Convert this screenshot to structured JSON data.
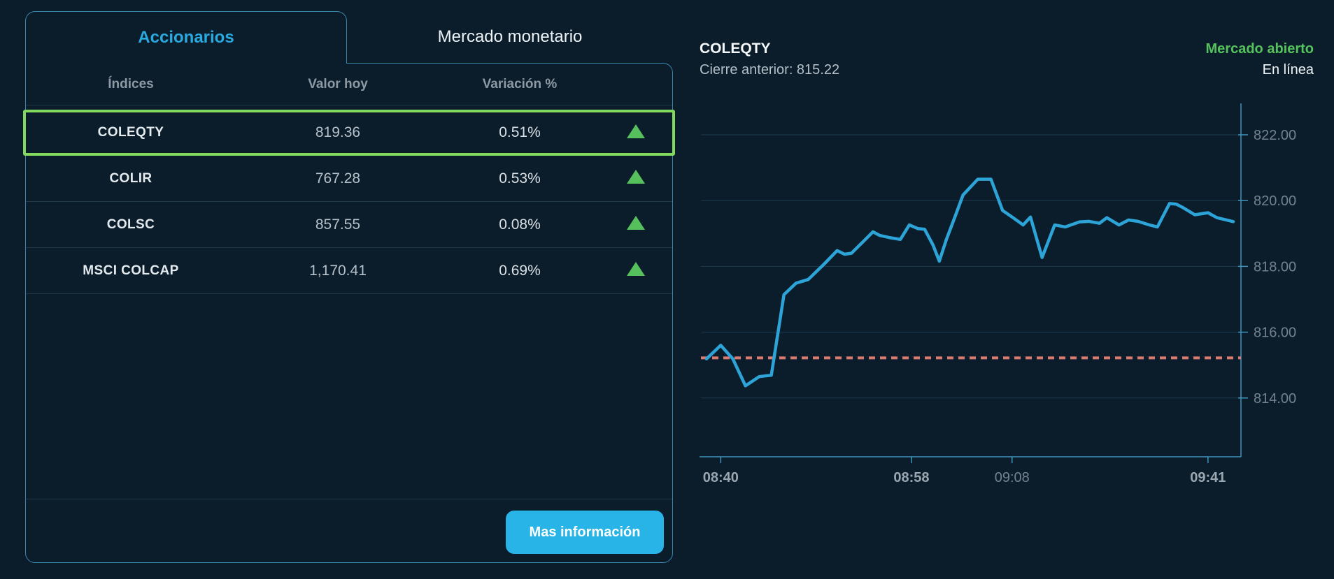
{
  "tabs": {
    "accionarios": "Accionarios",
    "mercado_monetario": "Mercado monetario"
  },
  "indices_table": {
    "headers": {
      "indices": "Índices",
      "valor_hoy": "Valor hoy",
      "variacion": "Variación %"
    },
    "rows": [
      {
        "name": "COLEQTY",
        "value": "819.36",
        "change": "0.51%",
        "direction": "up",
        "selected": true
      },
      {
        "name": "COLIR",
        "value": "767.28",
        "change": "0.53%",
        "direction": "up",
        "selected": false
      },
      {
        "name": "COLSC",
        "value": "857.55",
        "change": "0.08%",
        "direction": "up",
        "selected": false
      },
      {
        "name": "MSCI COLCAP",
        "value": "1,170.41",
        "change": "0.69%",
        "direction": "up",
        "selected": false
      }
    ],
    "more_info_button": "Mas información"
  },
  "quote_header": {
    "symbol": "COLEQTY",
    "previous_close_label": "Cierre anterior: 815.22",
    "market_status": "Mercado abierto",
    "connection_status": "En línea"
  },
  "colors": {
    "background": "#0b1d2b",
    "accent_cyan": "#29abe2",
    "button_cyan": "#29b4e8",
    "highlight_green": "#82d95e",
    "triangle_green": "#56c15c",
    "status_green": "#55c25d",
    "line_blue": "#2da4d8",
    "prev_close_dash": "#dd7a70"
  },
  "chart_data": {
    "type": "line",
    "title": "COLEQTY",
    "previous_close": 815.22,
    "last_value": 819.36,
    "grid": "horizontal",
    "legend": "none",
    "ylabel_side": "right",
    "ylim": [
      812.1,
      823.2
    ],
    "y_ticks": [
      822,
      820,
      818,
      816,
      814
    ],
    "y_tick_labels": [
      "822.00",
      "820.00",
      "818.00",
      "816.00",
      "814.00"
    ],
    "x_ticks": [
      {
        "label": "08:40",
        "pos": 0.027,
        "emphasis": "bold"
      },
      {
        "label": "08:58",
        "pos": 0.389,
        "emphasis": "bold"
      },
      {
        "label": "09:08",
        "pos": 0.58,
        "emphasis": "normal"
      },
      {
        "label": "09:41",
        "pos": 0.952,
        "emphasis": "bold"
      }
    ],
    "line_color": "#2da4d8",
    "prev_close_color": "#dd7a70",
    "series": [
      {
        "name": "COLEQTY",
        "points": [
          [
            0.0,
            815.19
          ],
          [
            0.027,
            815.6
          ],
          [
            0.05,
            815.19
          ],
          [
            0.074,
            814.37
          ],
          [
            0.1,
            814.65
          ],
          [
            0.123,
            814.69
          ],
          [
            0.147,
            817.14
          ],
          [
            0.17,
            817.49
          ],
          [
            0.193,
            817.6
          ],
          [
            0.222,
            818.05
          ],
          [
            0.248,
            818.48
          ],
          [
            0.262,
            818.37
          ],
          [
            0.275,
            818.4
          ],
          [
            0.301,
            818.81
          ],
          [
            0.316,
            819.05
          ],
          [
            0.329,
            818.94
          ],
          [
            0.349,
            818.87
          ],
          [
            0.368,
            818.82
          ],
          [
            0.385,
            819.26
          ],
          [
            0.401,
            819.15
          ],
          [
            0.414,
            819.13
          ],
          [
            0.43,
            818.65
          ],
          [
            0.442,
            818.16
          ],
          [
            0.455,
            818.8
          ],
          [
            0.471,
            819.48
          ],
          [
            0.487,
            820.17
          ],
          [
            0.515,
            820.65
          ],
          [
            0.54,
            820.65
          ],
          [
            0.562,
            819.7
          ],
          [
            0.582,
            819.48
          ],
          [
            0.601,
            819.26
          ],
          [
            0.615,
            819.5
          ],
          [
            0.637,
            818.27
          ],
          [
            0.661,
            819.26
          ],
          [
            0.681,
            819.2
          ],
          [
            0.708,
            819.35
          ],
          [
            0.726,
            819.37
          ],
          [
            0.746,
            819.31
          ],
          [
            0.76,
            819.48
          ],
          [
            0.783,
            819.26
          ],
          [
            0.801,
            819.41
          ],
          [
            0.819,
            819.37
          ],
          [
            0.841,
            819.26
          ],
          [
            0.856,
            819.2
          ],
          [
            0.879,
            819.91
          ],
          [
            0.892,
            819.89
          ],
          [
            0.903,
            819.8
          ],
          [
            0.927,
            819.57
          ],
          [
            0.952,
            819.63
          ],
          [
            0.969,
            819.48
          ],
          [
            1.0,
            819.36
          ]
        ]
      }
    ]
  }
}
